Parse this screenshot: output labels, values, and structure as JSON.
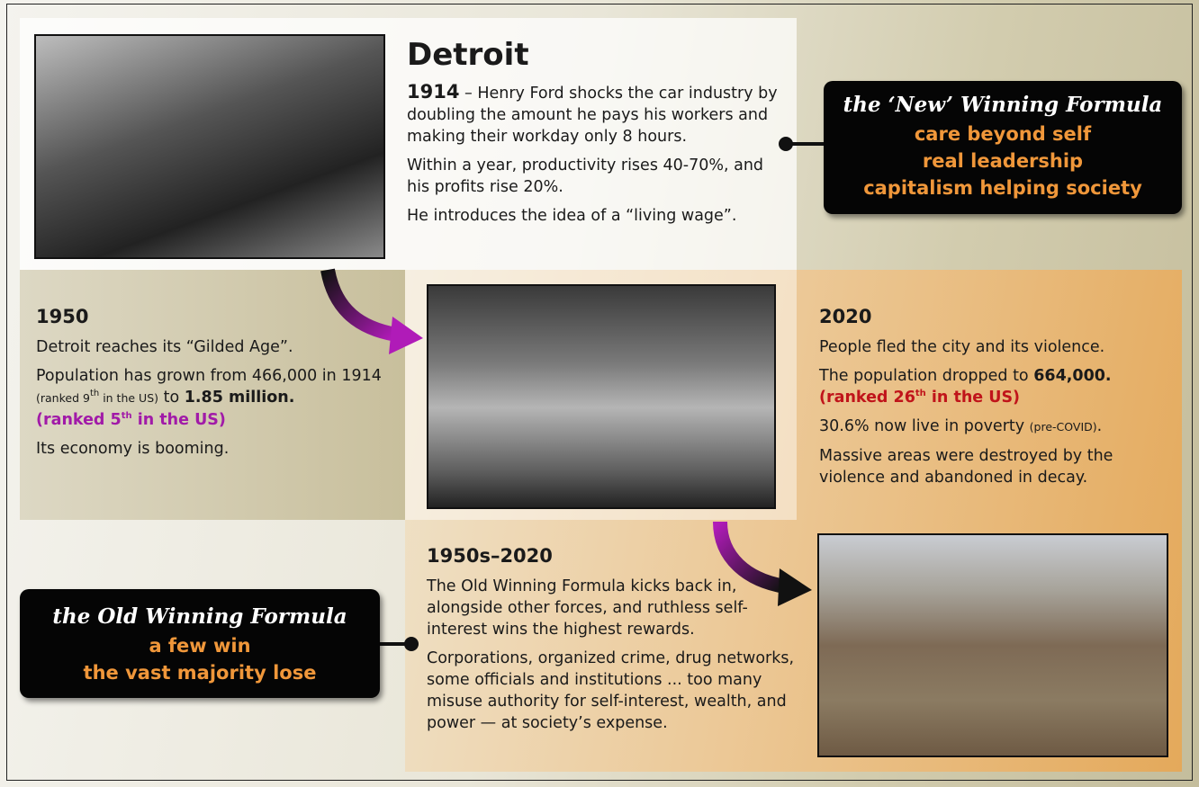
{
  "detroit": {
    "title": "Detroit",
    "p1": [
      "1914",
      " – Henry Ford shocks the car industry by doubling the amount he pays his workers and making their workday only 8 hours."
    ],
    "p2": "Within a year, productivity rises 40-70%, and his profits rise 20%.",
    "p3": "He introduces the idea of a “living wage”."
  },
  "new_formula": {
    "title": "the ‘New’ Winning Formula",
    "lines": [
      "care beyond self",
      "real leadership",
      "capitalism helping society"
    ]
  },
  "y1950": {
    "heading": "1950",
    "p1": "Detroit reaches its “Gilded Age”.",
    "p2": [
      "Population has grown from 466,000 in 1914 ",
      "(ranked 9",
      "th",
      " in the US)",
      " to ",
      "1.85 million."
    ],
    "highlight": [
      "(ranked 5",
      "th",
      " in the US)"
    ],
    "p3": "Its economy is booming."
  },
  "y2020": {
    "heading": "2020",
    "p1": "People fled the city and its violence.",
    "p2": [
      "The population dropped to ",
      "664,000."
    ],
    "highlight": [
      "(ranked 26",
      "th",
      " in the US)"
    ],
    "p3": [
      "30.6% now live in poverty ",
      "(pre-COVID)",
      "."
    ],
    "p4": "Massive areas were destroyed by the violence and abandoned in decay."
  },
  "decline": {
    "heading": "1950s–2020",
    "p1": "The Old Winning Formula kicks back in, alongside other forces, and ruthless self-interest wins the highest rewards.",
    "p2": "Corporations, organized crime, drug networks, some officials and institutions ... too many misuse authority for self-interest, wealth, and power — at society’s expense."
  },
  "old_formula": {
    "title": "the Old Winning Formula",
    "lines": [
      "a few win",
      "the vast majority lose"
    ]
  }
}
